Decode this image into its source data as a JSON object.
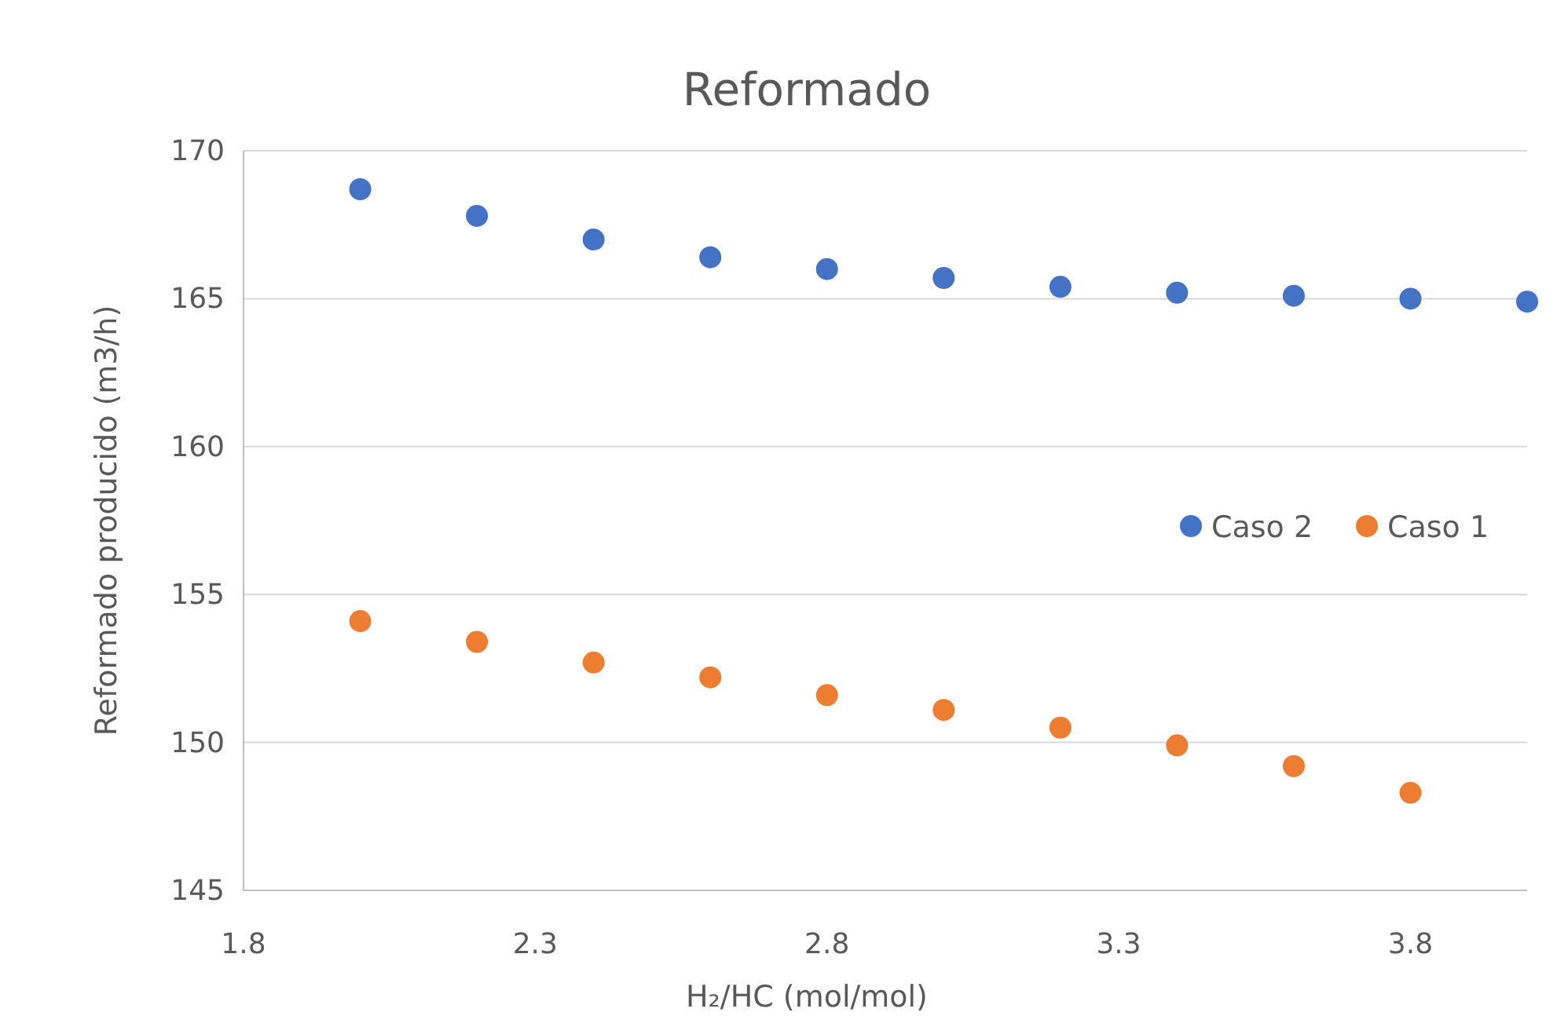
{
  "chart_data": {
    "type": "scatter",
    "title": "Reformado",
    "xlabel": "H₂/HC (mol/mol)",
    "ylabel": "Reformado producido (m3/h)",
    "series": [
      {
        "name": "Caso 2",
        "color": "#4472c4",
        "x": [
          2.0,
          2.2,
          2.4,
          2.6,
          2.8,
          3.0,
          3.2,
          3.4,
          3.6,
          3.8,
          4.0
        ],
        "values": [
          168.7,
          167.8,
          167.0,
          166.4,
          166.0,
          165.7,
          165.4,
          165.2,
          165.1,
          165.0,
          164.9
        ]
      },
      {
        "name": "Caso 1",
        "color": "#ed7d31",
        "x": [
          2.0,
          2.2,
          2.4,
          2.6,
          2.8,
          3.0,
          3.2,
          3.4,
          3.6,
          3.8
        ],
        "values": [
          154.1,
          153.4,
          152.7,
          152.2,
          151.6,
          151.1,
          150.5,
          149.9,
          149.2,
          148.3
        ]
      }
    ],
    "xlim": [
      1.8,
      4.0
    ],
    "xticks": [
      1.8,
      2.3,
      2.8,
      3.3,
      3.8
    ],
    "ylim": [
      145,
      170
    ],
    "yticks": [
      145,
      150,
      155,
      160,
      165,
      170
    ],
    "grid": "y",
    "legend": "right",
    "marker": "circle"
  }
}
